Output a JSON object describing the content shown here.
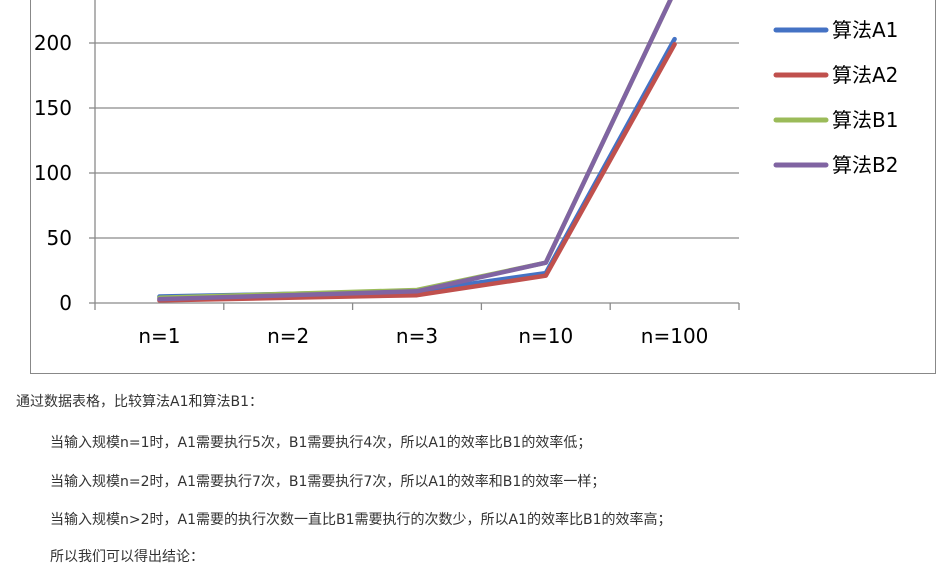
{
  "chart_data": {
    "type": "line",
    "categories": [
      "n=1",
      "n=2",
      "n=3",
      "n=10",
      "n=100"
    ],
    "yticks": [
      "0",
      "50",
      "100",
      "150",
      "200"
    ],
    "ylim": [
      0,
      200
    ],
    "grid": true,
    "legend_position": "right",
    "series": [
      {
        "name": "算法A1",
        "color": "#4472C4",
        "values": [
          5,
          7,
          9,
          23,
          203
        ]
      },
      {
        "name": "算法A2",
        "color": "#C0504D",
        "values": [
          2,
          4,
          6,
          21,
          199
        ]
      },
      {
        "name": "算法B1",
        "color": "#9BBB59",
        "values": [
          4,
          7,
          10,
          31,
          240
        ]
      },
      {
        "name": "算法B2",
        "color": "#8064A2",
        "values": [
          3,
          6,
          9,
          31,
          240
        ]
      }
    ]
  },
  "text": {
    "intro": "通过数据表格，比较算法A1和算法B1：",
    "line1": "当输入规模n=1时，A1需要执行5次，B1需要执行4次，所以A1的效率比B1的效率低；",
    "line2": "当输入规模n=2时，A1需要执行7次，B1需要执行7次，所以A1的效率和B1的效率一样；",
    "line3": "当输入规模n>2时，A1需要的执行次数一直比B1需要执行的次数少，所以A1的效率比B1的效率高；",
    "line4": "所以我们可以得出结论："
  }
}
